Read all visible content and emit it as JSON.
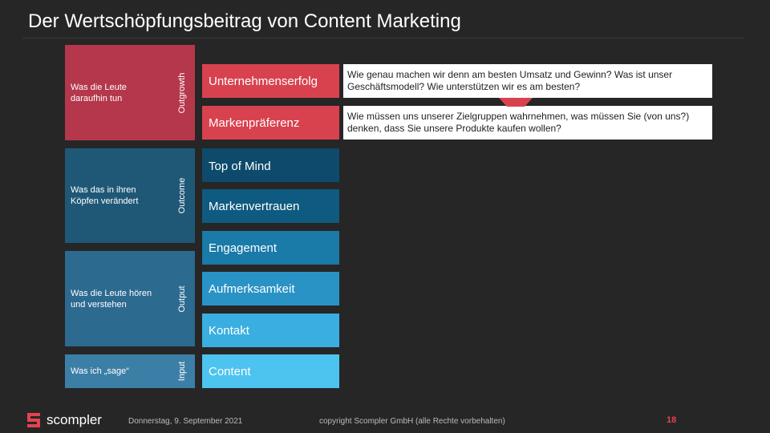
{
  "slide": {
    "title": "Der Wertschöpfungsbeitrag von Content Marketing"
  },
  "groups": [
    {
      "description": "Was die Leute daraufhin tun",
      "side_label": "Outgrowth"
    },
    {
      "description": "Was das in ihren Köpfen verändert",
      "side_label": "Outcome"
    },
    {
      "description": "Was die Leute hören und verstehen",
      "side_label": "Output"
    },
    {
      "description": "Was ich „sage“",
      "side_label": "Input"
    }
  ],
  "bars": [
    {
      "label": "Unternehmenserfolg",
      "color": "#ffffff"
    },
    {
      "label": "Markenpräferenz",
      "color": "#ffffff"
    },
    {
      "label": "Top of Mind",
      "color": "#0d4a6b"
    },
    {
      "label": "Markenvertrauen",
      "color": "#0f5a80"
    },
    {
      "label": "Engagement",
      "color": "#1a7aa8"
    },
    {
      "label": "Aufmerksamkeit",
      "color": "#2a93c6"
    },
    {
      "label": "Kontakt",
      "color": "#3aaee0"
    },
    {
      "label": "Content",
      "color": "#4dc3ef"
    }
  ],
  "notes": [
    {
      "text": "Wie genau machen wir denn am besten Umsatz und Gewinn? Was ist unser Geschäftsmodell? Wie unterstützen wir es am besten?"
    },
    {
      "text": "Wie müssen uns unserer Zielgruppen wahrnehmen, was müssen Sie (von uns?) denken, dass Sie unsere Produkte kaufen wollen?"
    }
  ],
  "footer": {
    "logo_text": "scompler",
    "date": "Donnerstag, 9. September 2021",
    "copyright": "copyright Scompler GmbH (alle Rechte vorbehalten)",
    "page_number": "18"
  },
  "colors": {
    "background": "#262626",
    "group_outgrowth": "#b5374b",
    "group_outcome": "#1f5877",
    "group_output": "#2c6a90",
    "group_input": "#3c7fa6",
    "bar_top_fill": "#d8424f",
    "accent_red": "#e8414f",
    "connector": "#d8424f"
  }
}
